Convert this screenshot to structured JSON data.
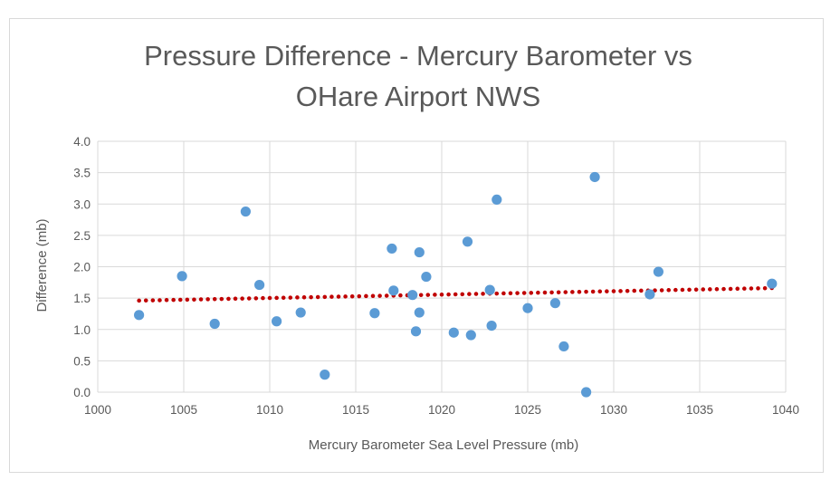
{
  "chart_data": {
    "type": "scatter",
    "title": [
      "Pressure Difference - Mercury Barometer vs",
      "OHare Airport NWS"
    ],
    "xlabel": "Mercury Barometer Sea Level Pressure (mb)",
    "ylabel": "Difference (mb)",
    "xlim": [
      1000,
      1040
    ],
    "ylim": [
      0,
      4
    ],
    "xticks": [
      "1000",
      "1005",
      "1010",
      "1015",
      "1020",
      "1025",
      "1030",
      "1035",
      "1040"
    ],
    "yticks": [
      "0.0",
      "0.5",
      "1.0",
      "1.5",
      "2.0",
      "2.5",
      "3.0",
      "3.5",
      "4.0"
    ],
    "grid": true,
    "legend": "none",
    "colors": {
      "points": "#5b9bd5",
      "trendline": "#c00000",
      "grid": "#d9d9d9",
      "text": "#595959"
    },
    "series": [
      {
        "points": [
          [
            1002.4,
            1.23
          ],
          [
            1004.9,
            1.85
          ],
          [
            1006.8,
            1.09
          ],
          [
            1008.6,
            2.88
          ],
          [
            1009.4,
            1.71
          ],
          [
            1010.4,
            1.13
          ],
          [
            1011.8,
            1.27
          ],
          [
            1013.2,
            0.28
          ],
          [
            1016.1,
            1.26
          ],
          [
            1017.1,
            2.29
          ],
          [
            1017.2,
            1.62
          ],
          [
            1018.3,
            1.55
          ],
          [
            1018.5,
            0.97
          ],
          [
            1018.7,
            1.27
          ],
          [
            1018.7,
            2.23
          ],
          [
            1019.1,
            1.84
          ],
          [
            1020.7,
            0.95
          ],
          [
            1021.5,
            2.4
          ],
          [
            1021.7,
            0.91
          ],
          [
            1022.8,
            1.63
          ],
          [
            1022.9,
            1.06
          ],
          [
            1023.2,
            3.07
          ],
          [
            1025.0,
            1.34
          ],
          [
            1026.6,
            1.42
          ],
          [
            1027.1,
            0.73
          ],
          [
            1028.4,
            0.0
          ],
          [
            1028.9,
            3.43
          ],
          [
            1032.1,
            1.56
          ],
          [
            1032.6,
            1.92
          ],
          [
            1039.2,
            1.73
          ]
        ]
      }
    ],
    "trendline": {
      "type": "linear",
      "x": [
        1002.4,
        1039.2
      ],
      "y": [
        1.46,
        1.66
      ],
      "style": "dotted"
    }
  }
}
